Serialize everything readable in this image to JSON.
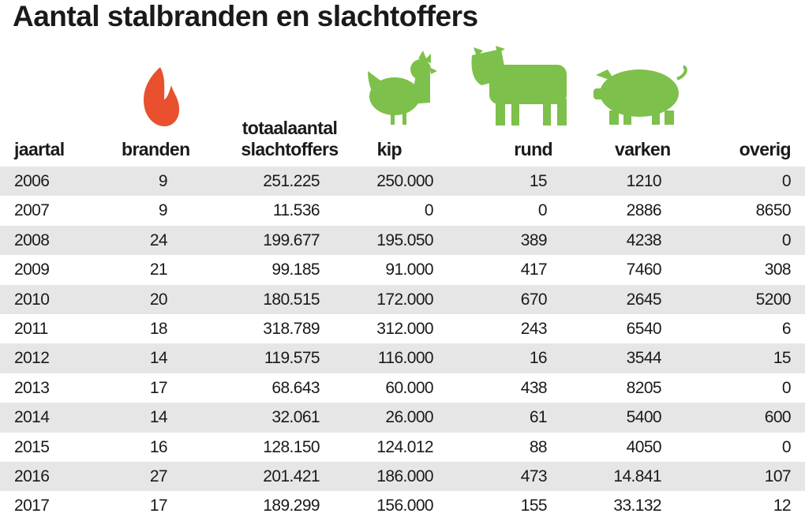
{
  "header": {
    "title": "Aantal stalbranden en slachtoffers"
  },
  "table": {
    "columns": [
      "jaartal",
      "branden",
      "totaalaantal slachtoffers",
      "kip",
      "rund",
      "varken",
      "overig"
    ],
    "rows": [
      [
        "2006",
        "9",
        "251.225",
        "250.000",
        "15",
        "1210",
        "0"
      ],
      [
        "2007",
        "9",
        "11.536",
        "0",
        "0",
        "2886",
        "8650"
      ],
      [
        "2008",
        "24",
        "199.677",
        "195.050",
        "389",
        "4238",
        "0"
      ],
      [
        "2009",
        "21",
        "99.185",
        "91.000",
        "417",
        "7460",
        "308"
      ],
      [
        "2010",
        "20",
        "180.515",
        "172.000",
        "670",
        "2645",
        "5200"
      ],
      [
        "2011",
        "18",
        "318.789",
        "312.000",
        "243",
        "6540",
        "6"
      ],
      [
        "2012",
        "14",
        "119.575",
        "116.000",
        "16",
        "3544",
        "15"
      ],
      [
        "2013",
        "17",
        "68.643",
        "60.000",
        "438",
        "8205",
        "0"
      ],
      [
        "2014",
        "14",
        "32.061",
        "26.000",
        "61",
        "5400",
        "600"
      ],
      [
        "2015",
        "16",
        "128.150",
        "124.012",
        "88",
        "4050",
        "0"
      ],
      [
        "2016",
        "27",
        "201.421",
        "186.000",
        "473",
        "14.841",
        "107"
      ],
      [
        "2017",
        "17",
        "189.299",
        "156.000",
        "155",
        "33.132",
        "12"
      ]
    ]
  }
}
